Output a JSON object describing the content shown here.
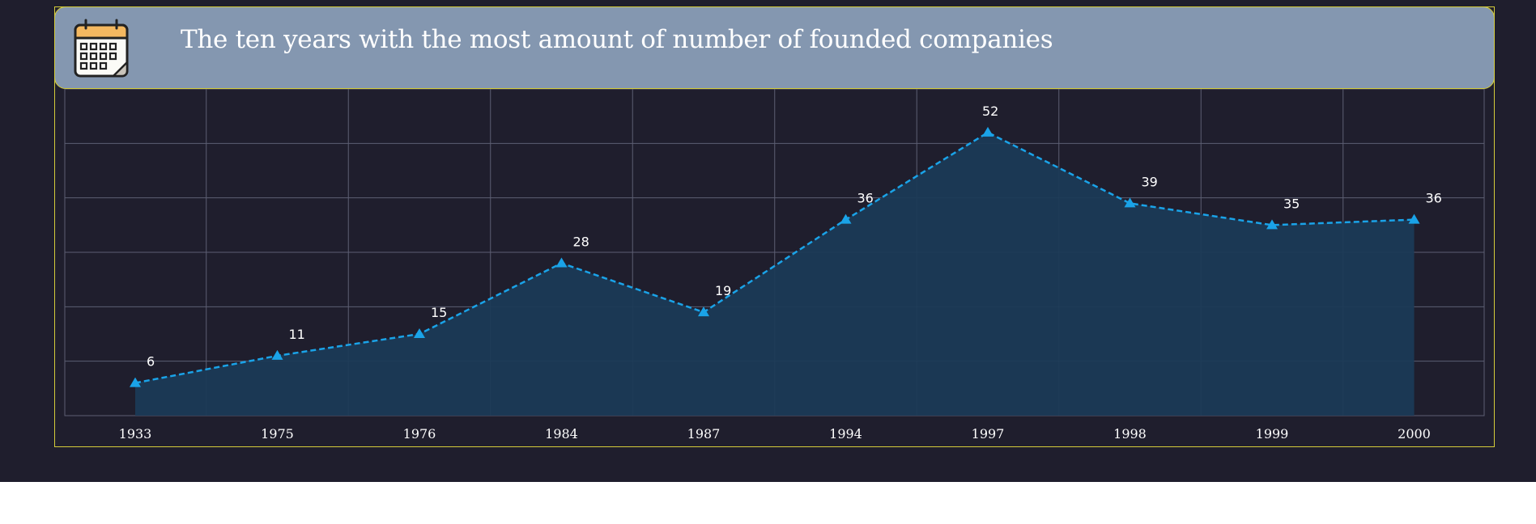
{
  "title": "The ten years with the most amount of number of founded companies",
  "icons": {
    "header_icon": "calendar-icon"
  },
  "colors": {
    "background": "#1f1e2d",
    "header": "#8497b0",
    "border": "#d4cc3a",
    "line": "#1aa3e8",
    "area": "#1b3a56",
    "grid": "#5d5f73"
  },
  "chart_data": {
    "type": "area",
    "categories": [
      "1933",
      "1975",
      "1976",
      "1984",
      "1987",
      "1994",
      "1997",
      "1998",
      "1999",
      "2000"
    ],
    "values": [
      6,
      11,
      15,
      28,
      19,
      36,
      52,
      39,
      35,
      36
    ],
    "title": "The ten years with the most amount of number of founded companies",
    "xlabel": "",
    "ylabel": "",
    "ylim": [
      0,
      60
    ],
    "grid": true,
    "line_style": "dashed",
    "marker": "triangle",
    "data_labels": true
  }
}
